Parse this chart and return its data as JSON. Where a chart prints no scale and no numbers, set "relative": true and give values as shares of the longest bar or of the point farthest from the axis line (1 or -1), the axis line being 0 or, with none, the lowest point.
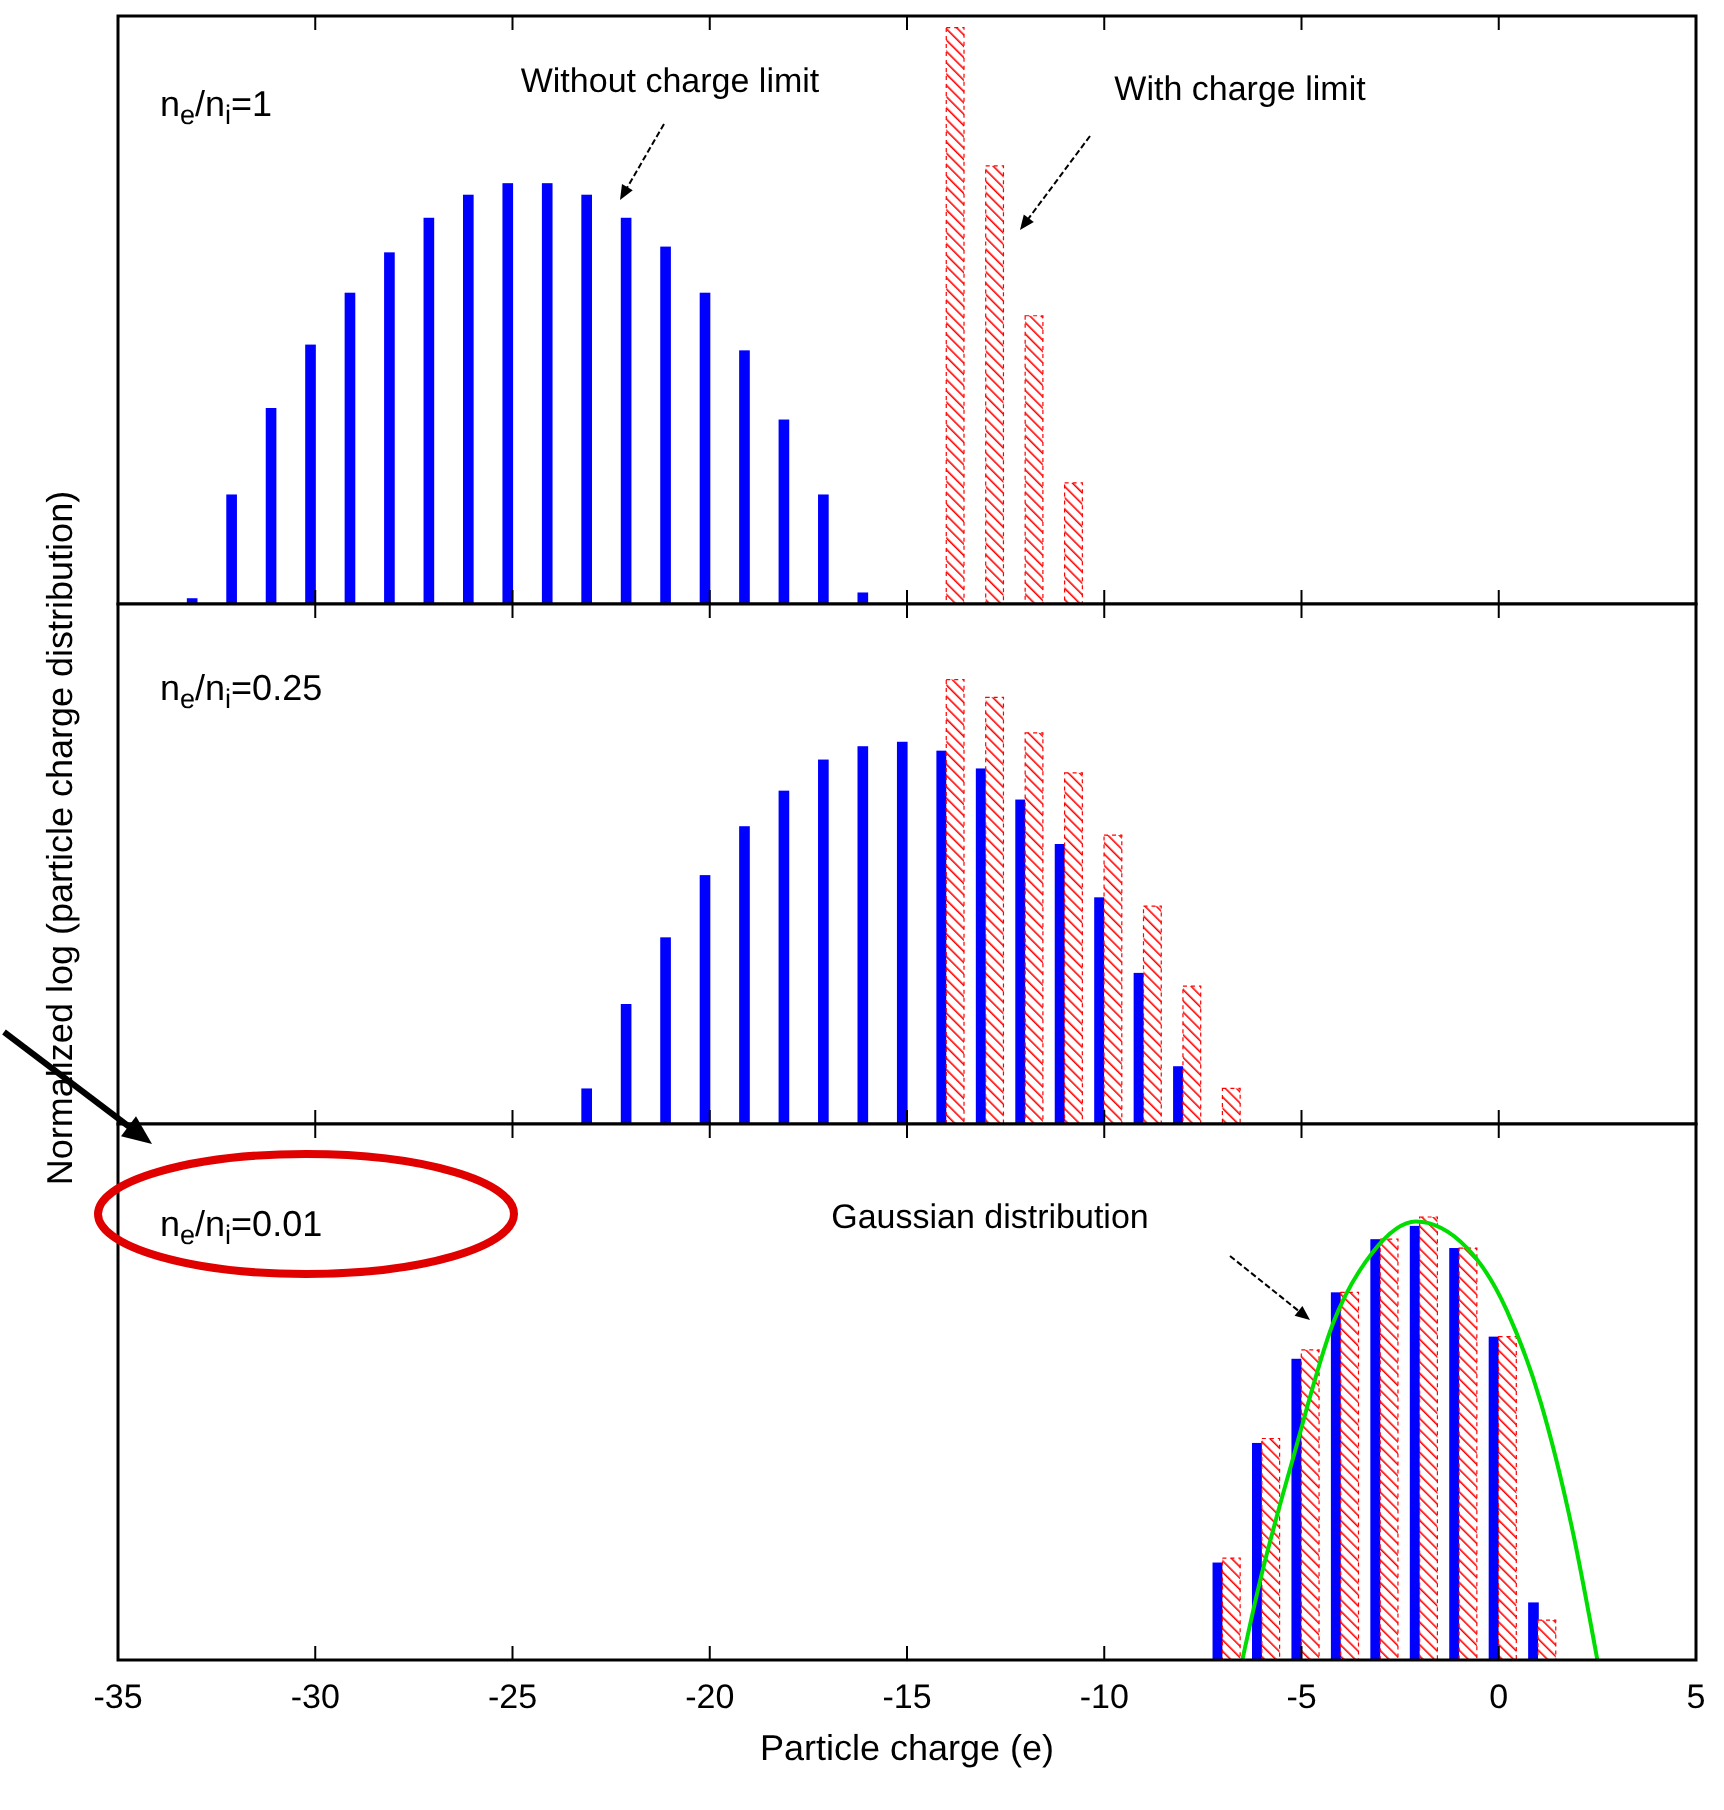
{
  "chart_data": [
    {
      "type": "bar",
      "relative": true,
      "xlim": [
        -35,
        5
      ],
      "xticks": [
        -35,
        -30,
        -25,
        -20,
        -15,
        -10,
        -5,
        0,
        5
      ],
      "tick_labels": false,
      "series": [
        {
          "color": "#0000ff",
          "x": [
            -33,
            -32,
            -31,
            -30,
            -29,
            -28,
            -27,
            -26,
            -25,
            -24,
            -23,
            -22,
            -21,
            -20,
            -19,
            -18,
            -17,
            -16
          ],
          "values": [
            0.01,
            0.19,
            0.34,
            0.45,
            0.54,
            0.61,
            0.67,
            0.71,
            0.73,
            0.73,
            0.71,
            0.67,
            0.62,
            0.54,
            0.44,
            0.32,
            0.19,
            0.02
          ]
        },
        {
          "color": "#ff0000",
          "x": [
            -14,
            -13,
            -12,
            -11
          ],
          "values": [
            1,
            0.76,
            0.5,
            0.21
          ]
        }
      ],
      "annotations": [
        "n$_{e}$/n$_{i}$=1",
        "Without charge limit",
        "With charge limit"
      ]
    },
    {
      "type": "bar",
      "relative": true,
      "xlim": [
        -35,
        5
      ],
      "xticks": [
        -35,
        -30,
        -25,
        -20,
        -15,
        -10,
        -5,
        0,
        5
      ],
      "tick_labels": false,
      "ylabel": "Normalized log (particle charge distribution)",
      "series": [
        {
          "color": "#0000ff",
          "x": [
            -23,
            -22,
            -21,
            -20,
            -19,
            -18,
            -17,
            -16,
            -15,
            -14,
            -13,
            -12,
            -11,
            -10,
            -9,
            -8
          ],
          "values": [
            0.08,
            0.27,
            0.42,
            0.56,
            0.67,
            0.75,
            0.82,
            0.85,
            0.86,
            0.84,
            0.8,
            0.73,
            0.63,
            0.51,
            0.34,
            0.13
          ]
        },
        {
          "color": "#ff0000",
          "x": [
            -14,
            -13,
            -12,
            -11,
            -10,
            -9,
            -8,
            -7
          ],
          "values": [
            1,
            0.96,
            0.88,
            0.79,
            0.65,
            0.49,
            0.31,
            0.08
          ]
        }
      ],
      "annotations": [
        "n$_{e}$/n$_{i}$=0.25"
      ]
    },
    {
      "type": "bar",
      "relative": true,
      "xlim": [
        -35,
        5
      ],
      "xticks": [
        -35,
        -30,
        -25,
        -20,
        -15,
        -10,
        -5,
        0,
        5
      ],
      "tick_labels": "x",
      "xlabel": "Particle charge (e)",
      "series": [
        {
          "color": "#0000ff",
          "x": [
            -7,
            -6,
            -5,
            -4,
            -3,
            -2,
            -1,
            0,
            1
          ],
          "values": [
            0.22,
            0.49,
            0.68,
            0.83,
            0.95,
            0.98,
            0.93,
            0.73,
            0.13
          ]
        },
        {
          "color": "#ff0000",
          "x": [
            -7,
            -6,
            -5,
            -4,
            -3,
            -2,
            -1,
            0,
            1
          ],
          "values": [
            0.23,
            0.5,
            0.7,
            0.83,
            0.95,
            1,
            0.93,
            0.73,
            0.09
          ]
        },
        {
          "type": "line",
          "color": "#00dd00",
          "x": [
            -6.5,
            -6.1,
            -5.2,
            -4.2,
            -3.2,
            -2.1,
            -0.8,
            0.2,
            1.07,
            1.9,
            2.5
          ],
          "values": [
            0,
            0.16,
            0.46,
            0.76,
            0.92,
            0.99,
            0.93,
            0.79,
            0.58,
            0.28,
            0
          ]
        }
      ],
      "annotations": [
        "n$_{e}$/n$_{i}$=0.01",
        "Gaussian distribution"
      ]
    }
  ]
}
